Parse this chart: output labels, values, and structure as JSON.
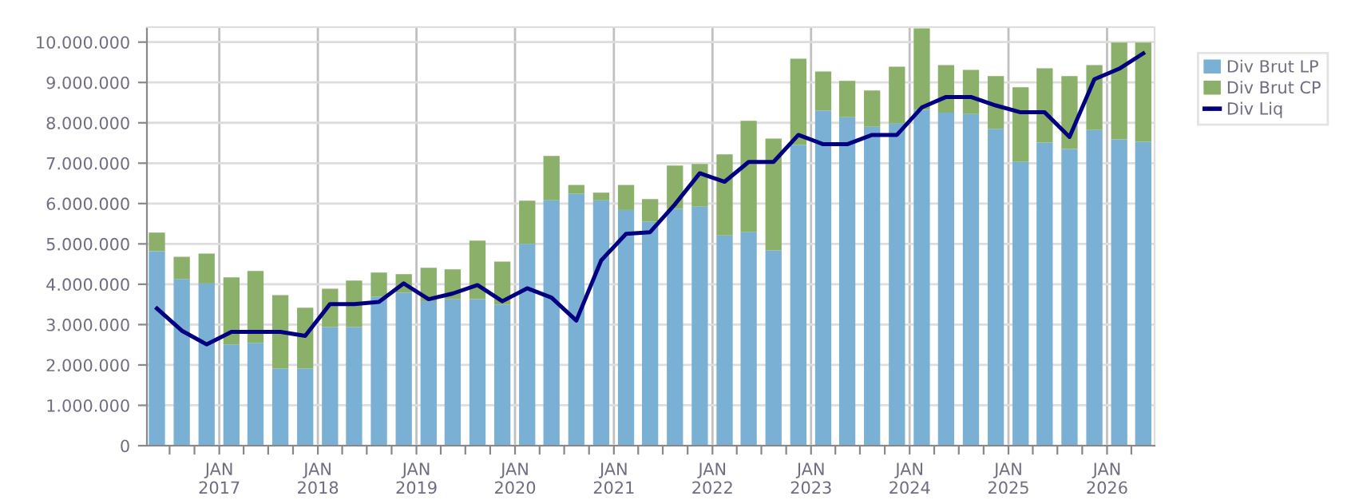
{
  "chart_data": {
    "type": "bar",
    "stacked": true,
    "grid": true,
    "legend": "top right",
    "marker": "none",
    "line_style": "solid",
    "x": [
      "2016-05-15",
      "2016-08-15",
      "2016-11-15",
      "2017-02-15",
      "2017-05-15",
      "2017-08-15",
      "2017-11-15",
      "2018-02-15",
      "2018-05-15",
      "2018-08-15",
      "2018-11-15",
      "2019-02-15",
      "2019-05-15",
      "2019-08-15",
      "2019-11-15",
      "2020-02-15",
      "2020-05-15",
      "2020-08-15",
      "2020-11-15",
      "2021-02-15",
      "2021-05-15",
      "2021-08-15",
      "2021-11-15",
      "2022-02-15",
      "2022-05-15",
      "2022-08-15",
      "2022-11-15",
      "2023-02-15",
      "2023-05-15",
      "2023-08-15",
      "2023-11-15",
      "2024-02-15",
      "2024-05-15",
      "2024-08-15",
      "2024-11-15",
      "2025-02-15",
      "2025-05-15",
      "2025-08-15",
      "2025-11-15",
      "2026-02-15",
      "2026-05-15"
    ],
    "series": [
      {
        "name": "Div Brut LP",
        "color": "#7ab0d4",
        "values": [
          4820000,
          4130000,
          4020000,
          2510000,
          2550000,
          1910000,
          1910000,
          2940000,
          2940000,
          3690000,
          3790000,
          3580000,
          3630000,
          3630000,
          3500000,
          5000000,
          6080000,
          6240000,
          6080000,
          5840000,
          5550000,
          5870000,
          5920000,
          5210000,
          5290000,
          4840000,
          7450000,
          8300000,
          8140000,
          7900000,
          7980000,
          8320000,
          8250000,
          8220000,
          7850000,
          7030000,
          7510000,
          7350000,
          7820000,
          7590000,
          7530000
        ]
      },
      {
        "name": "Div Brut CP",
        "color": "#8bb06a",
        "values": [
          460000,
          550000,
          740000,
          1660000,
          1780000,
          1820000,
          1510000,
          950000,
          1150000,
          600000,
          460000,
          830000,
          740000,
          1450000,
          1060000,
          1070000,
          1100000,
          220000,
          190000,
          620000,
          560000,
          1070000,
          1060000,
          2010000,
          2760000,
          2770000,
          2140000,
          970000,
          900000,
          900000,
          1410000,
          2020000,
          1180000,
          1090000,
          1310000,
          1850000,
          1840000,
          1810000,
          1610000,
          2400000,
          2460000
        ]
      },
      {
        "name": "Div Liq",
        "type": "line",
        "color": "#000080",
        "values": [
          3400000,
          2850000,
          2510000,
          2820000,
          2820000,
          2820000,
          2720000,
          3510000,
          3510000,
          3560000,
          4020000,
          3630000,
          3770000,
          3980000,
          3580000,
          3900000,
          3670000,
          3100000,
          4590000,
          5250000,
          5290000,
          5980000,
          6750000,
          6540000,
          7030000,
          7030000,
          7700000,
          7470000,
          7470000,
          7700000,
          7700000,
          8380000,
          8640000,
          8640000,
          8430000,
          8260000,
          8260000,
          7650000,
          9080000,
          9340000,
          9720000
        ]
      }
    ],
    "xlim": [
      "2016-04-08",
      "2026-06-26"
    ],
    "xticks": [
      {
        "value": "2016-07-01",
        "label": null
      },
      {
        "value": "2016-10-01",
        "label": null
      },
      {
        "value": "2017-01-01",
        "label": "JAN\n2017"
      },
      {
        "value": "2017-04-01",
        "label": null
      },
      {
        "value": "2017-07-01",
        "label": null
      },
      {
        "value": "2017-10-01",
        "label": null
      },
      {
        "value": "2018-01-01",
        "label": "JAN\n2018"
      },
      {
        "value": "2018-04-01",
        "label": null
      },
      {
        "value": "2018-07-01",
        "label": null
      },
      {
        "value": "2018-10-01",
        "label": null
      },
      {
        "value": "2019-01-01",
        "label": "JAN\n2019"
      },
      {
        "value": "2019-04-01",
        "label": null
      },
      {
        "value": "2019-07-01",
        "label": null
      },
      {
        "value": "2019-10-01",
        "label": null
      },
      {
        "value": "2020-01-01",
        "label": "JAN\n2020"
      },
      {
        "value": "2020-04-01",
        "label": null
      },
      {
        "value": "2020-07-01",
        "label": null
      },
      {
        "value": "2020-10-01",
        "label": null
      },
      {
        "value": "2021-01-01",
        "label": "JAN\n2021"
      },
      {
        "value": "2021-04-01",
        "label": null
      },
      {
        "value": "2021-07-01",
        "label": null
      },
      {
        "value": "2021-10-01",
        "label": null
      },
      {
        "value": "2022-01-01",
        "label": "JAN\n2022"
      },
      {
        "value": "2022-04-01",
        "label": null
      },
      {
        "value": "2022-07-01",
        "label": null
      },
      {
        "value": "2022-10-01",
        "label": null
      },
      {
        "value": "2023-01-01",
        "label": "JAN\n2023"
      },
      {
        "value": "2023-04-01",
        "label": null
      },
      {
        "value": "2023-07-01",
        "label": null
      },
      {
        "value": "2023-10-01",
        "label": null
      },
      {
        "value": "2024-01-01",
        "label": "JAN\n2024"
      },
      {
        "value": "2024-04-01",
        "label": null
      },
      {
        "value": "2024-07-01",
        "label": null
      },
      {
        "value": "2024-10-01",
        "label": null
      },
      {
        "value": "2025-01-01",
        "label": "JAN\n2025"
      },
      {
        "value": "2025-04-01",
        "label": null
      },
      {
        "value": "2025-07-01",
        "label": null
      },
      {
        "value": "2025-10-01",
        "label": null
      },
      {
        "value": "2026-01-01",
        "label": "JAN\n2026"
      },
      {
        "value": "2026-04-01",
        "label": null
      }
    ],
    "ylim": [
      0,
      10370000
    ],
    "yticks": [
      0,
      {
        "value": 1000000,
        "label": "1.000.000"
      },
      {
        "value": 2000000,
        "label": "2.000.000"
      },
      {
        "value": 3000000,
        "label": "3.000.000"
      },
      {
        "value": 4000000,
        "label": "4.000.000"
      },
      {
        "value": 5000000,
        "label": "5.000.000"
      },
      {
        "value": 6000000,
        "label": "6.000.000"
      },
      {
        "value": 7000000,
        "label": "7.000.000"
      },
      {
        "value": 8000000,
        "label": "8.000.000"
      },
      {
        "value": 9000000,
        "label": "9.000.000"
      },
      {
        "value": 10000000,
        "label": "10.000.000"
      }
    ]
  }
}
